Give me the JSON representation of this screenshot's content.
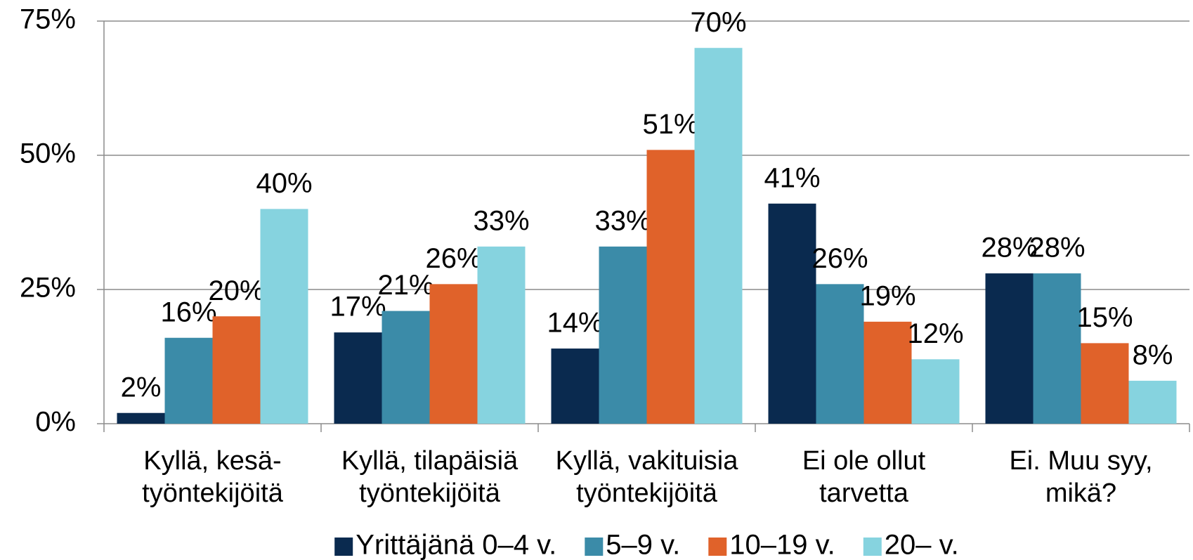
{
  "chart_data": {
    "type": "bar",
    "categories": [
      "Kyllä, kesä-\ntyöntekijöitä",
      "Kyllä, tilapäisiä\ntyöntekijöitä",
      "Kyllä, vakituisia\ntyöntekijöitä",
      "Ei ole ollut\ntarvetta",
      "Ei. Muu syy,\nmikä?"
    ],
    "series": [
      {
        "name": "Yrittäjänä 0–4 v.",
        "color": "#0a2a4f",
        "values": [
          2,
          17,
          14,
          41,
          28
        ],
        "value_labels": [
          "2%",
          "17%",
          "14%",
          "41%",
          "28%"
        ]
      },
      {
        "name": "5–9 v.",
        "color": "#3b8ba8",
        "values": [
          16,
          21,
          33,
          26,
          28
        ],
        "value_labels": [
          "16%",
          "21%",
          "33%",
          "26%",
          "28%"
        ]
      },
      {
        "name": "10–19 v.",
        "color": "#e0622a",
        "values": [
          20,
          26,
          51,
          19,
          15
        ],
        "value_labels": [
          "20%",
          "26%",
          "51%",
          "19%",
          "15%"
        ]
      },
      {
        "name": "20– v.",
        "color": "#86d3df",
        "values": [
          40,
          33,
          70,
          12,
          8
        ],
        "value_labels": [
          "40%",
          "33%",
          "70%",
          "12%",
          "8%"
        ]
      }
    ],
    "ylim": [
      0,
      75
    ],
    "yticks": [
      {
        "value": 0,
        "label": "0%"
      },
      {
        "value": 25,
        "label": "25%"
      },
      {
        "value": 50,
        "label": "50%"
      },
      {
        "value": 75,
        "label": "75%"
      }
    ],
    "grid": true,
    "legend": "bottom"
  }
}
